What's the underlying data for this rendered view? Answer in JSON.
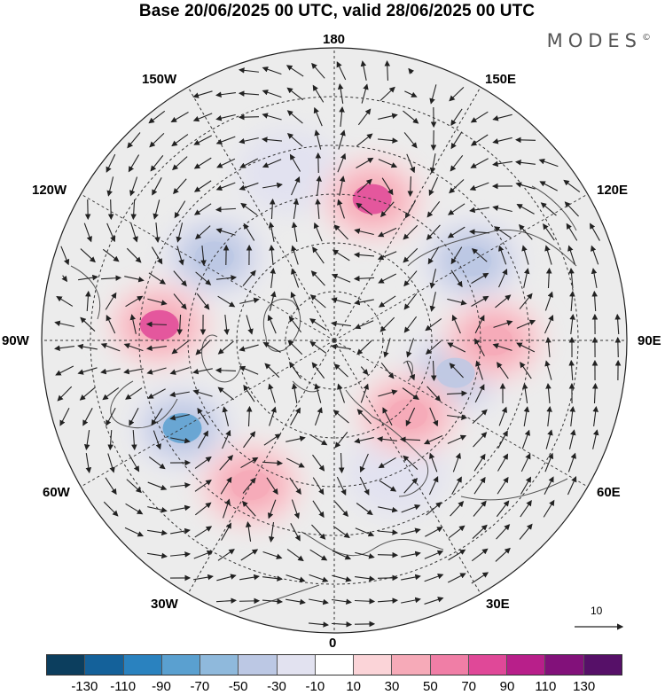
{
  "title": "Base 20/06/2025 00 UTC, valid 28/06/2025 00 UTC",
  "logo": "MODES",
  "logo_mark": "©",
  "longitude_labels": {
    "top": "180",
    "bottom": "0",
    "left": "90W",
    "right": "90E",
    "upper_left_1": "150W",
    "upper_left_2": "120W",
    "lower_left_1": "60W",
    "lower_left_2": "30W",
    "upper_right_1": "150E",
    "upper_right_2": "120E",
    "lower_right_1": "60E",
    "lower_right_2": "30E"
  },
  "vector_reference": "10",
  "colorbar": {
    "ticks": [
      "-130",
      "-110",
      "-90",
      "-70",
      "-50",
      "-30",
      "-10",
      "10",
      "30",
      "50",
      "70",
      "90",
      "110",
      "130"
    ],
    "colors": [
      "#0c3e5e",
      "#14619a",
      "#2a82bf",
      "#5aa0d0",
      "#8fb9dc",
      "#bcc8e4",
      "#e2e2f0",
      "#ffffff",
      "#fbd4d8",
      "#f6aab8",
      "#f07ea6",
      "#e04898",
      "#b81f8a",
      "#82117a",
      "#561068"
    ]
  },
  "anomaly_centers": [
    {
      "sign": "negative",
      "value": -90,
      "lon": -60,
      "lat": 48
    },
    {
      "sign": "negative",
      "value": -50,
      "lon": -125,
      "lat": 55
    },
    {
      "sign": "negative",
      "value": -50,
      "lon": 120,
      "lat": 52
    },
    {
      "sign": "negative",
      "value": -50,
      "lon": 75,
      "lat": 60
    },
    {
      "sign": "negative",
      "value": -30,
      "lon": 25,
      "lat": 55
    },
    {
      "sign": "negative",
      "value": -30,
      "lon": -165,
      "lat": 48
    },
    {
      "sign": "positive",
      "value": 70,
      "lon": -95,
      "lat": 48
    },
    {
      "sign": "positive",
      "value": 70,
      "lon": 165,
      "lat": 55
    },
    {
      "sign": "positive",
      "value": 30,
      "lon": 90,
      "lat": 52
    },
    {
      "sign": "positive",
      "value": 30,
      "lon": 45,
      "lat": 65
    },
    {
      "sign": "positive",
      "value": 30,
      "lon": -30,
      "lat": 50
    }
  ]
}
